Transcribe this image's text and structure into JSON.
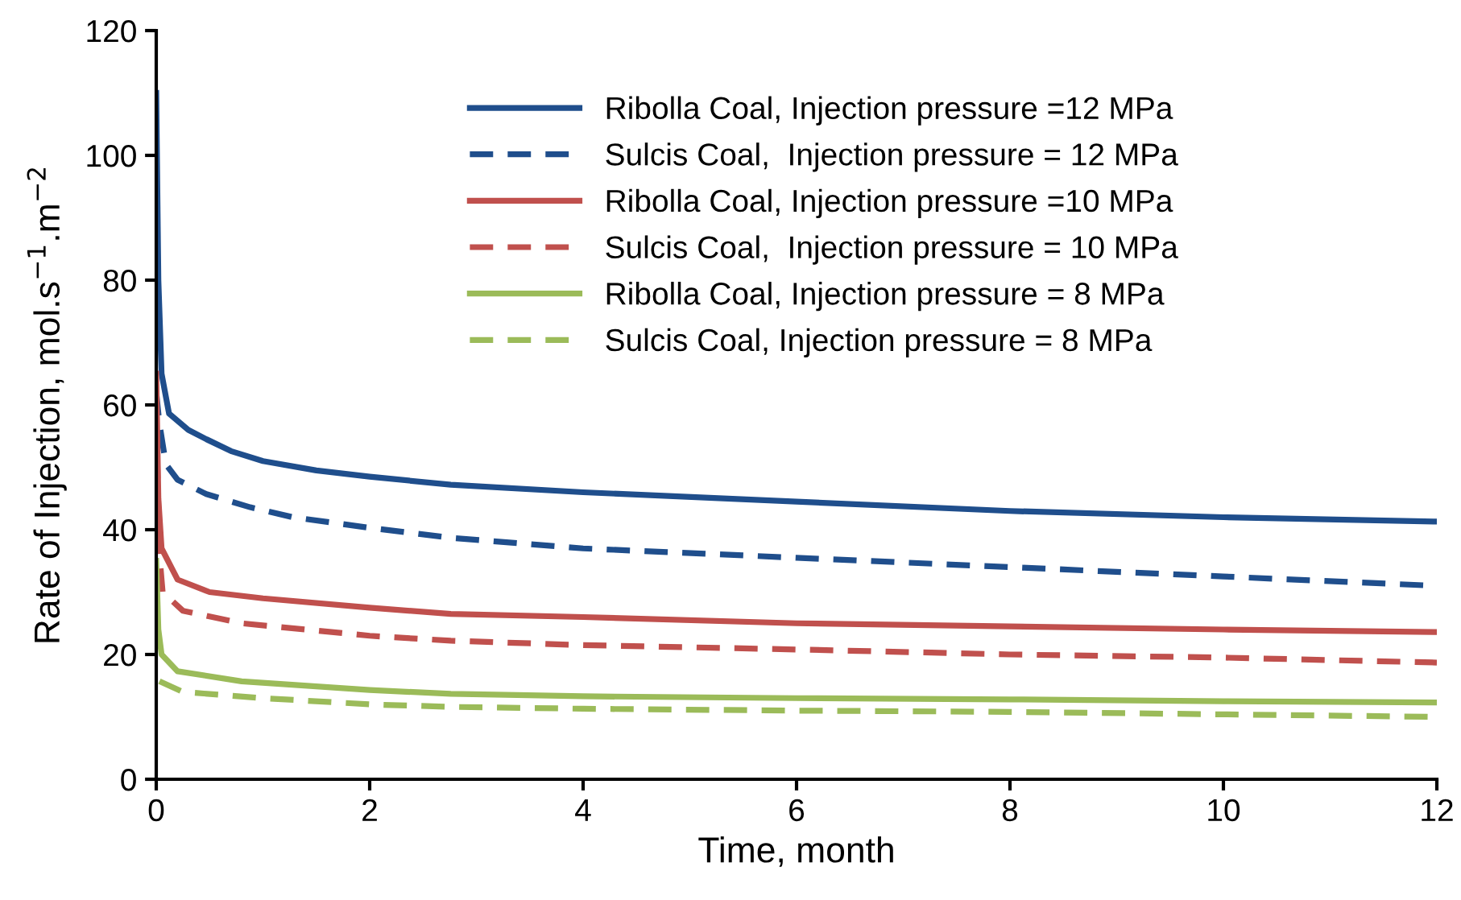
{
  "chart_data": {
    "type": "line",
    "xlabel": "Time, month",
    "ylabel": "Rate of Injection, mol.s$^{−1}$.m$^{−2}$",
    "xlim": [
      0,
      12
    ],
    "ylim": [
      0,
      120
    ],
    "xticks": [
      0,
      2,
      4,
      6,
      8,
      10,
      12
    ],
    "yticks": [
      0,
      20,
      40,
      60,
      80,
      100,
      120
    ],
    "grid": false,
    "legend": "top right",
    "marker": "none",
    "series": [
      {
        "name": "Ribolla Coal, Injection pressure =12 MPa",
        "color": "#1f4e8c",
        "line_style": "solid",
        "x": [
          0,
          0.02,
          0.05,
          0.12,
          0.3,
          0.47,
          0.7,
          1,
          1.5,
          2,
          2.76,
          4,
          6,
          8,
          10,
          12
        ],
        "values": [
          110,
          80,
          65,
          58.6,
          56,
          54.5,
          52.6,
          51,
          49.5,
          48.5,
          47.2,
          46,
          44.5,
          43,
          42,
          41.3
        ]
      },
      {
        "name": "Sulcis Coal,  Injection pressure = 12 MPa",
        "color": "#1f4e8c",
        "line_style": "dashed",
        "x": [
          0,
          0.03,
          0.09,
          0.2,
          0.47,
          0.88,
          1.28,
          2,
          2.76,
          4,
          6,
          8,
          10,
          12
        ],
        "values": [
          62,
          57,
          50.5,
          48,
          45.7,
          43.6,
          42,
          40.3,
          38.7,
          37,
          35.5,
          34,
          32.5,
          31
        ]
      },
      {
        "name": "Ribolla Coal, Injection pressure =10 MPa",
        "color": "#c0504d",
        "line_style": "solid",
        "x": [
          0,
          0.02,
          0.05,
          0.2,
          0.5,
          1,
          2,
          2.76,
          4,
          6,
          8,
          10,
          12
        ],
        "values": [
          65,
          45,
          37,
          32,
          30,
          29,
          27.5,
          26.5,
          26,
          25,
          24.5,
          24,
          23.6
        ]
      },
      {
        "name": "Sulcis Coal,  Injection pressure = 10 MPa",
        "color": "#c0504d",
        "line_style": "dashed",
        "x": [
          0,
          0.03,
          0.06,
          0.25,
          0.8,
          2,
          2.76,
          4,
          6,
          8,
          10,
          12
        ],
        "values": [
          58,
          36,
          30,
          27,
          25,
          23,
          22.2,
          21.5,
          20.8,
          20,
          19.5,
          18.7
        ]
      },
      {
        "name": "Ribolla Coal, Injection pressure = 8 MPa",
        "color": "#9bbb59",
        "line_style": "solid",
        "x": [
          0,
          0.02,
          0.05,
          0.2,
          0.8,
          2,
          2.76,
          4,
          6,
          8,
          10,
          12
        ],
        "values": [
          35,
          24,
          20,
          17.3,
          15.7,
          14.3,
          13.7,
          13.3,
          13,
          12.8,
          12.5,
          12.3
        ]
      },
      {
        "name": "Sulcis Coal, Injection pressure = 8 MPa",
        "color": "#9bbb59",
        "line_style": "dashed",
        "x": [
          0.03,
          0.25,
          1,
          2,
          2.76,
          4,
          6,
          8,
          10,
          12
        ],
        "values": [
          15.7,
          14,
          13,
          12,
          11.6,
          11.3,
          11,
          10.8,
          10.4,
          10
        ]
      }
    ]
  }
}
